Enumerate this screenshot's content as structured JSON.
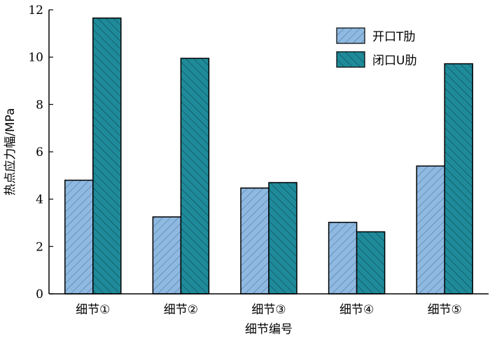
{
  "chart_data": {
    "type": "bar",
    "title": "",
    "xlabel": "细节编号",
    "ylabel": "热点应力幅/MPa",
    "ylim": [
      0,
      12
    ],
    "yticks": [
      "0",
      "2",
      "4",
      "6",
      "8",
      "10",
      "12"
    ],
    "grid": false,
    "legend_position": "top-right",
    "categories": [
      "细节①",
      "细节②",
      "细节③",
      "细节④",
      "细节⑤"
    ],
    "series": [
      {
        "name": "开口T肋",
        "color": "#8fb9e0",
        "hatch_color": "#3f6f9a",
        "values": [
          4.8,
          3.25,
          4.47,
          3.02,
          5.4
        ]
      },
      {
        "name": "闭口U肋",
        "color": "#1f8a99",
        "hatch_color": "#0b3f48",
        "values": [
          11.65,
          9.95,
          4.7,
          2.62,
          9.72
        ]
      }
    ]
  }
}
